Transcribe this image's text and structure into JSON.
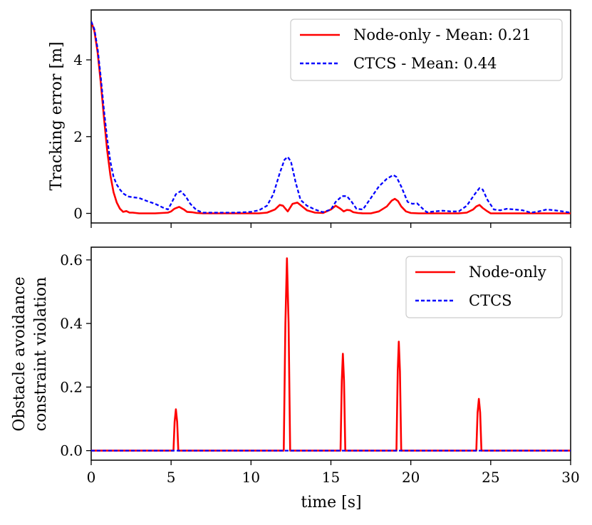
{
  "chart_data": [
    {
      "type": "line",
      "title": "",
      "xlabel": "",
      "ylabel": "Tracking error [m]",
      "xlim": [
        0,
        30
      ],
      "ylim": [
        -0.25,
        5.3
      ],
      "xticks": [
        0,
        5,
        10,
        15,
        20,
        25,
        30
      ],
      "xtick_labels": [
        "",
        "",
        "",
        "",
        "",
        "",
        ""
      ],
      "yticks": [
        0,
        2,
        4
      ],
      "ytick_labels": [
        "0",
        "2",
        "4"
      ],
      "legend_location": "top-right",
      "series": [
        {
          "name": "Node-only - Mean: 0.21",
          "color": "#ff0000",
          "style": "solid",
          "x": [
            0,
            0.2,
            0.4,
            0.6,
            0.8,
            1.0,
            1.2,
            1.4,
            1.6,
            1.8,
            2.0,
            2.2,
            2.4,
            2.6,
            3.0,
            4.0,
            4.8,
            5.0,
            5.2,
            5.5,
            5.8,
            6.0,
            6.3,
            6.6,
            7.0,
            8.0,
            9.0,
            10.0,
            10.5,
            11.0,
            11.5,
            11.8,
            12.0,
            12.3,
            12.6,
            12.9,
            13.2,
            13.5,
            14.0,
            14.5,
            15.0,
            15.3,
            15.6,
            15.8,
            16.0,
            16.2,
            16.4,
            16.7,
            17.0,
            17.5,
            18.0,
            18.5,
            18.8,
            19.0,
            19.2,
            19.4,
            19.7,
            20.0,
            20.5,
            21.0,
            22.0,
            23.0,
            23.5,
            23.9,
            24.1,
            24.3,
            24.5,
            24.8,
            25.0,
            25.5,
            26.0,
            27.0,
            28.0,
            29.0,
            30.0
          ],
          "y": [
            5.0,
            4.75,
            4.2,
            3.4,
            2.5,
            1.65,
            1.0,
            0.55,
            0.28,
            0.12,
            0.04,
            0.06,
            0.02,
            0.02,
            0.0,
            0.0,
            0.02,
            0.05,
            0.12,
            0.17,
            0.1,
            0.04,
            0.03,
            0.01,
            0.0,
            0.0,
            0.0,
            0.0,
            0.0,
            0.02,
            0.1,
            0.22,
            0.2,
            0.05,
            0.25,
            0.28,
            0.18,
            0.08,
            0.02,
            0.01,
            0.1,
            0.2,
            0.12,
            0.05,
            0.09,
            0.08,
            0.03,
            0.01,
            0.0,
            0.0,
            0.05,
            0.18,
            0.33,
            0.38,
            0.32,
            0.18,
            0.05,
            0.01,
            0.0,
            0.0,
            0.0,
            0.0,
            0.02,
            0.1,
            0.18,
            0.22,
            0.14,
            0.05,
            0.0,
            0.0,
            0.0,
            0.0,
            0.0,
            0.0,
            0.0
          ]
        },
        {
          "name": "CTCS - Mean: 0.44",
          "color": "#0000ff",
          "style": "dashed",
          "x": [
            0,
            0.2,
            0.4,
            0.6,
            0.8,
            1.0,
            1.2,
            1.4,
            1.6,
            1.8,
            2.0,
            2.3,
            2.6,
            3.0,
            3.5,
            4.0,
            4.5,
            4.8,
            5.0,
            5.3,
            5.6,
            5.9,
            6.2,
            6.6,
            7.0,
            8.0,
            9.0,
            10.0,
            10.5,
            11.0,
            11.4,
            11.8,
            12.1,
            12.3,
            12.5,
            12.8,
            13.1,
            13.5,
            14.0,
            14.5,
            15.0,
            15.3,
            15.7,
            16.0,
            16.3,
            16.6,
            17.0,
            17.5,
            18.0,
            18.5,
            18.9,
            19.1,
            19.4,
            19.8,
            20.1,
            20.4,
            20.8,
            21.0,
            21.5,
            22.0,
            22.5,
            23.0,
            23.5,
            24.0,
            24.3,
            24.5,
            24.8,
            25.2,
            25.6,
            26.0,
            26.5,
            27.0,
            27.5,
            28.0,
            28.5,
            29.0,
            29.5,
            30.0
          ],
          "y": [
            5.0,
            4.8,
            4.3,
            3.55,
            2.7,
            1.95,
            1.35,
            0.95,
            0.75,
            0.62,
            0.52,
            0.44,
            0.42,
            0.4,
            0.32,
            0.25,
            0.15,
            0.1,
            0.25,
            0.5,
            0.58,
            0.45,
            0.25,
            0.08,
            0.02,
            0.02,
            0.02,
            0.04,
            0.08,
            0.2,
            0.5,
            1.05,
            1.4,
            1.47,
            1.35,
            0.8,
            0.35,
            0.2,
            0.1,
            0.03,
            0.1,
            0.3,
            0.45,
            0.45,
            0.3,
            0.12,
            0.1,
            0.4,
            0.7,
            0.9,
            1.0,
            0.95,
            0.7,
            0.3,
            0.25,
            0.26,
            0.1,
            0.03,
            0.05,
            0.07,
            0.05,
            0.05,
            0.2,
            0.5,
            0.66,
            0.62,
            0.35,
            0.1,
            0.08,
            0.12,
            0.1,
            0.08,
            0.02,
            0.05,
            0.1,
            0.08,
            0.05,
            0.02
          ]
        }
      ],
      "legend": [
        "Node-only - Mean: 0.21",
        "CTCS - Mean: 0.44"
      ]
    },
    {
      "type": "line",
      "title": "",
      "xlabel": "time [s]",
      "ylabel": "Obstacle avoidance constraint violation",
      "ylabel_lines": [
        "Obstacle avoidance",
        "constraint violation"
      ],
      "xlim": [
        0,
        30
      ],
      "ylim": [
        -0.03,
        0.64
      ],
      "xticks": [
        0,
        5,
        10,
        15,
        20,
        25,
        30
      ],
      "xtick_labels": [
        "0",
        "5",
        "10",
        "15",
        "20",
        "25",
        "30"
      ],
      "yticks": [
        0.0,
        0.2,
        0.4,
        0.6
      ],
      "ytick_labels": [
        "0.0",
        "0.2",
        "0.4",
        "0.6"
      ],
      "legend_location": "top-right",
      "series": [
        {
          "name": "Node-only",
          "color": "#ff0000",
          "style": "solid",
          "x": [
            0,
            5.15,
            5.22,
            5.3,
            5.38,
            5.45,
            12.05,
            12.15,
            12.25,
            12.35,
            12.45,
            15.6,
            15.68,
            15.75,
            15.82,
            15.9,
            19.1,
            19.18,
            19.25,
            19.32,
            19.4,
            24.1,
            24.18,
            24.26,
            24.34,
            24.42,
            30
          ],
          "y": [
            0,
            0,
            0.09,
            0.13,
            0.09,
            0,
            0,
            0.4,
            0.605,
            0.4,
            0,
            0,
            0.22,
            0.305,
            0.22,
            0,
            0,
            0.25,
            0.343,
            0.25,
            0,
            0,
            0.12,
            0.163,
            0.12,
            0,
            0
          ]
        },
        {
          "name": "CTCS",
          "color": "#0000ff",
          "style": "dashed",
          "x": [
            0,
            30
          ],
          "y": [
            0,
            0
          ]
        }
      ],
      "legend": [
        "Node-only",
        "CTCS"
      ]
    }
  ]
}
